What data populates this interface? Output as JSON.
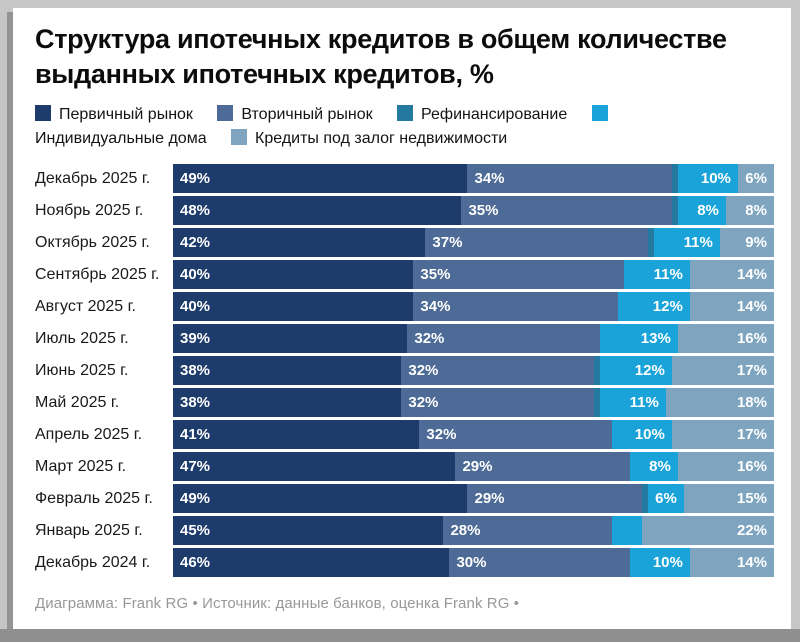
{
  "title": "Структура ипотечных кредитов в общем количестве выданных ипотечных кредитов, %",
  "footer": "Диаграмма: Frank RG • Источник: данные банков, оценка Frank RG •",
  "colors": {
    "primary": "#1d3b6b",
    "secondary": "#4d6b96",
    "refinance": "#2479a0",
    "individual": "#1aa3d8",
    "collateral": "#7ea4c0"
  },
  "label_min_percent": 6,
  "chart_data": {
    "type": "bar",
    "orientation": "horizontal-stacked",
    "value_suffix": "%",
    "xlim": [
      0,
      100
    ],
    "grid": false,
    "legend_position": "top",
    "categories": [
      "Декабрь 2025 г.",
      "Ноябрь 2025 г.",
      "Октябрь 2025 г.",
      "Сентябрь 2025 г.",
      "Август 2025 г.",
      "Июль 2025 г.",
      "Июнь 2025 г.",
      "Май 2025 г.",
      "Апрель 2025 г.",
      "Март 2025 г.",
      "Февраль 2025 г.",
      "Январь 2025 г.",
      "Декабрь 2024 г."
    ],
    "series": [
      {
        "name": "Первичный рынок",
        "color_key": "primary",
        "values": [
          49,
          48,
          42,
          40,
          40,
          39,
          38,
          38,
          41,
          47,
          49,
          45,
          46
        ]
      },
      {
        "name": "Вторичный рынок",
        "color_key": "secondary",
        "values": [
          34,
          35,
          37,
          35,
          34,
          32,
          32,
          32,
          32,
          29,
          29,
          28,
          30
        ]
      },
      {
        "name": "Рефинансирование",
        "color_key": "refinance",
        "values": [
          1,
          1,
          1,
          0,
          0,
          0,
          1,
          1,
          0,
          0,
          1,
          0,
          0
        ]
      },
      {
        "name": "Индивидуальные дома",
        "color_key": "individual",
        "values": [
          10,
          8,
          11,
          11,
          12,
          13,
          12,
          11,
          10,
          8,
          6,
          5,
          10
        ]
      },
      {
        "name": "Кредиты под залог недвижимости",
        "color_key": "collateral",
        "values": [
          6,
          8,
          9,
          14,
          14,
          16,
          17,
          18,
          17,
          16,
          15,
          22,
          14
        ]
      }
    ]
  }
}
